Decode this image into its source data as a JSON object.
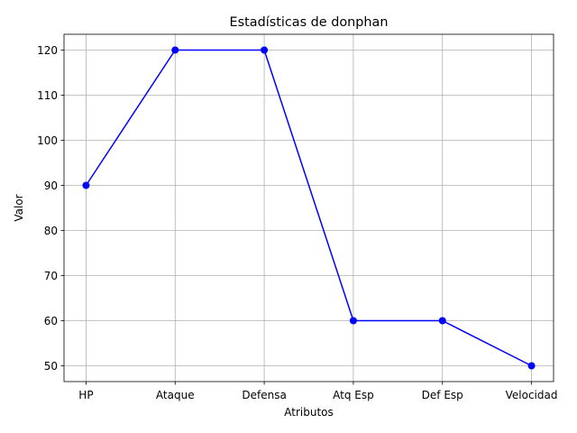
{
  "chart_data": {
    "type": "line",
    "title": "Estadísticas de donphan",
    "xlabel": "Atributos",
    "ylabel": "Valor",
    "categories": [
      "HP",
      "Ataque",
      "Defensa",
      "Atq Esp",
      "Def Esp",
      "Velocidad"
    ],
    "values": [
      90,
      120,
      120,
      60,
      60,
      50
    ],
    "ylim": [
      46.5,
      123.5
    ],
    "yticks": [
      50,
      60,
      70,
      80,
      90,
      100,
      110,
      120
    ],
    "grid": true,
    "color": "#0000ff",
    "marker": "circle"
  }
}
